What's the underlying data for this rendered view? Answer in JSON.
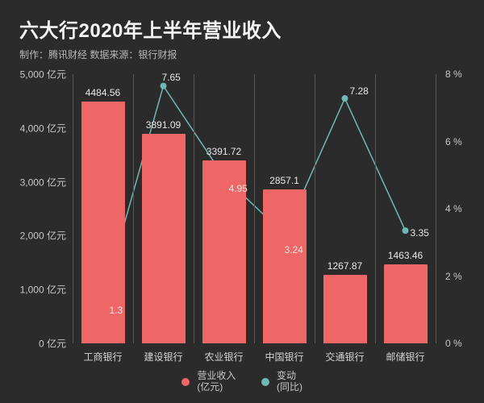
{
  "title": "六大行2020年上半年营业收入",
  "subtitle": "制作：腾讯财经  数据来源：银行财报",
  "chart": {
    "type": "bar+line",
    "background_color": "#2b2b2b",
    "grid_color": "#575757",
    "text_color": "#e8e8e8",
    "categories": [
      "工商银行",
      "建设银行",
      "农业银行",
      "中国银行",
      "交通银行",
      "邮储银行"
    ],
    "bars": {
      "label_line1": "营业收入",
      "label_line2": "(亿元)",
      "color": "#ee6666",
      "values": [
        4484.56,
        3891.09,
        3391.72,
        2857.1,
        1267.87,
        1463.46
      ],
      "value_labels": [
        "4484.56",
        "3891.09",
        "3391.72",
        "2857.1",
        "1267.87",
        "1463.46"
      ],
      "bar_width_frac": 0.72
    },
    "line": {
      "label_line1": "变动",
      "label_line2": "(同比)",
      "color": "#6fb8b4",
      "values": [
        1.3,
        7.65,
        4.95,
        3.24,
        7.28,
        3.35
      ],
      "value_labels": [
        "1.3",
        "7.65",
        "4.95",
        "3.24",
        "7.28",
        "3.35"
      ],
      "marker": "circle",
      "marker_size": 4,
      "line_width": 1.5
    },
    "y_left": {
      "min": 0,
      "max": 5000,
      "ticks": [
        0,
        1000,
        2000,
        3000,
        4000,
        5000
      ],
      "tick_labels": [
        "0 亿元",
        "1,000 亿元",
        "2,000 亿元",
        "3,000 亿元",
        "4,000 亿元",
        "5,000 亿元"
      ]
    },
    "y_right": {
      "min": 0,
      "max": 8,
      "ticks": [
        0,
        2,
        4,
        6,
        8
      ],
      "tick_labels": [
        "0 %",
        "2 %",
        "4 %",
        "6 %",
        "8 %"
      ]
    }
  },
  "legend": {
    "bar_label1": "营业收入",
    "bar_label2": "(亿元)",
    "line_label1": "变动",
    "line_label2": "(同比)"
  }
}
